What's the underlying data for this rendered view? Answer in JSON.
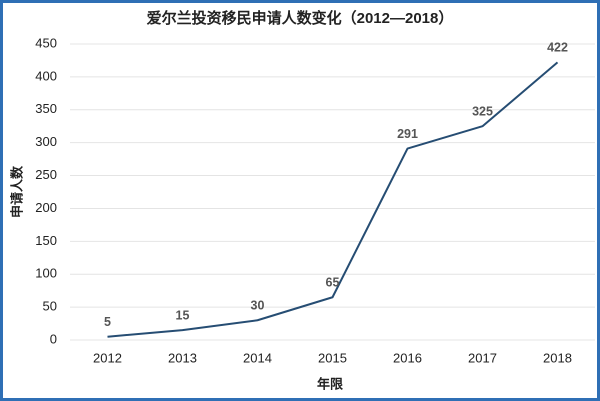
{
  "chart_data": {
    "type": "line",
    "title": "爱尔兰投资移民申请人数变化（2012—2018）",
    "x_label": "年限",
    "y_label": "申请人数",
    "categories": [
      "2012",
      "2013",
      "2014",
      "2015",
      "2016",
      "2017",
      "2018"
    ],
    "values": [
      5,
      15,
      30,
      65,
      291,
      325,
      422
    ],
    "color": "#264d73",
    "ylim": [
      0,
      450
    ],
    "yticks": [
      0,
      50,
      100,
      150,
      200,
      250,
      300,
      350,
      400,
      450
    ],
    "grid": true
  }
}
